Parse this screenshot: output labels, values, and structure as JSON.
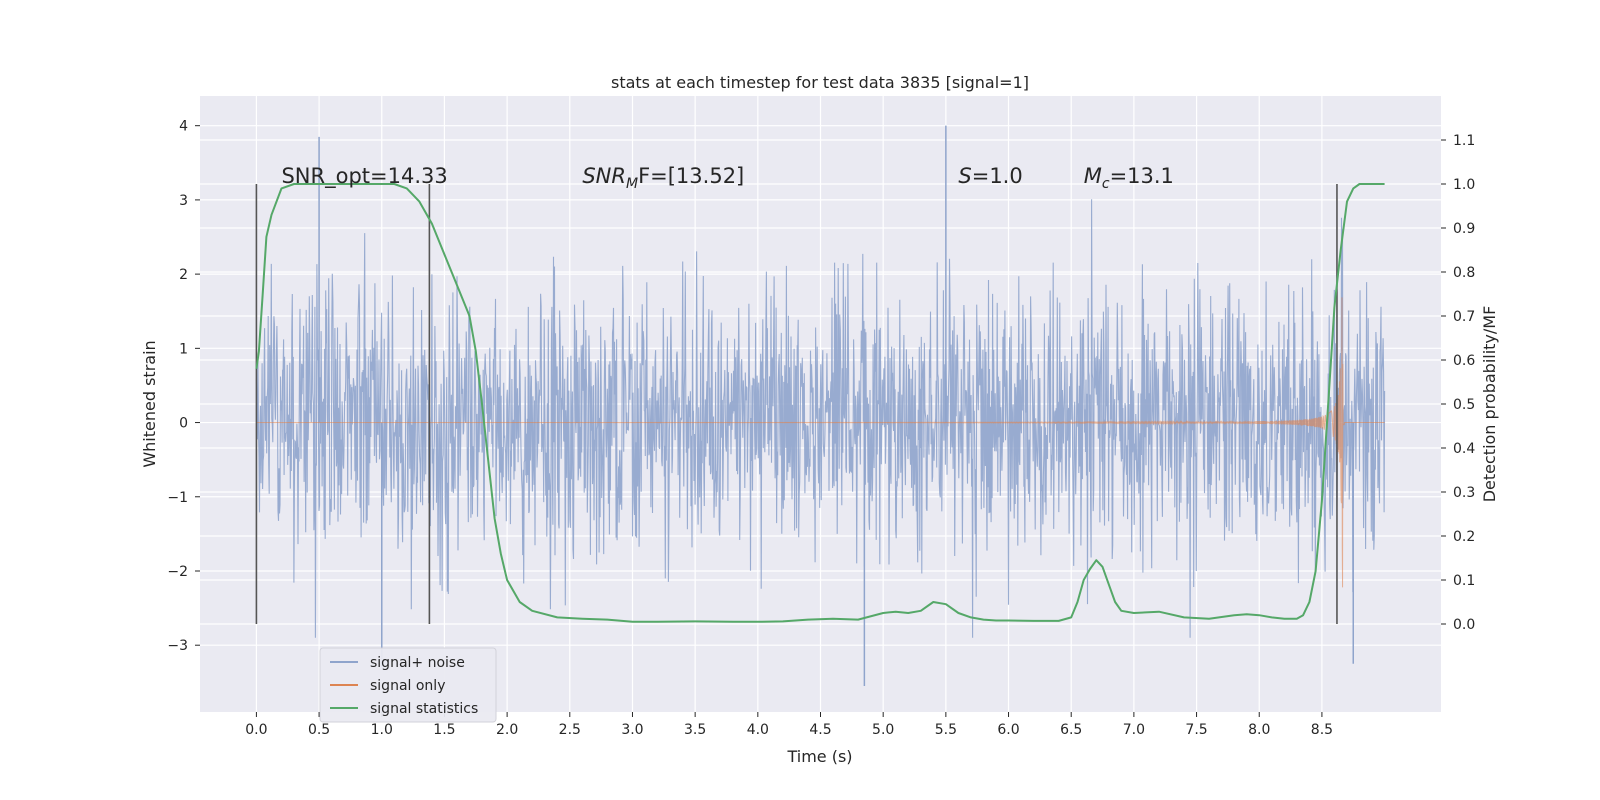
{
  "chart_data": {
    "type": "line",
    "title": "stats at each timestep for test data 3835 [signal=1]",
    "xlabel": "Time (s)",
    "ylabel": "Whitened strain",
    "y2label": "Detection probability/MF",
    "xlim": [
      -0.45,
      9.45
    ],
    "ylim": [
      -3.9,
      4.4
    ],
    "y2lim": [
      -0.2,
      1.2
    ],
    "xticks": [
      0.0,
      0.5,
      1.0,
      1.5,
      2.0,
      2.5,
      3.0,
      3.5,
      4.0,
      4.5,
      5.0,
      5.5,
      6.0,
      6.5,
      7.0,
      7.5,
      8.0,
      8.5
    ],
    "xtick_labels": [
      "0.0",
      "0.5",
      "1.0",
      "1.5",
      "2.0",
      "2.5",
      "3.0",
      "3.5",
      "4.0",
      "4.5",
      "5.0",
      "5.5",
      "6.0",
      "6.5",
      "7.0",
      "7.5",
      "8.0",
      "8.5"
    ],
    "yticks": [
      -3,
      -2,
      -1,
      0,
      1,
      2,
      3,
      4
    ],
    "ytick_labels": [
      "−3",
      "−2",
      "−1",
      "0",
      "1",
      "2",
      "3",
      "4"
    ],
    "y2ticks": [
      0.0,
      0.1,
      0.2,
      0.3,
      0.4,
      0.5,
      0.6,
      0.7,
      0.8,
      0.9,
      1.0,
      1.1
    ],
    "y2tick_labels": [
      "0.0",
      "0.1",
      "0.2",
      "0.3",
      "0.4",
      "0.5",
      "0.6",
      "0.7",
      "0.8",
      "0.9",
      "1.0",
      "1.1"
    ],
    "grid": true,
    "legend_position": "lower-left",
    "series": [
      {
        "name": "signal+ noise",
        "color": "#8fa4cc",
        "description": "whitened strain noise, roughly within ±2 with peaks near 4 at t=0.5 and t=5.5",
        "x_range": [
          0.0,
          9.0
        ],
        "envelope": [
          -2.0,
          2.0
        ],
        "peaks": [
          {
            "x": 0.5,
            "y": 3.85
          },
          {
            "x": 5.5,
            "y": 4.0
          },
          {
            "x": 4.85,
            "y": -3.55
          },
          {
            "x": 1.0,
            "y": -3.3
          },
          {
            "x": 8.75,
            "y": -3.25
          }
        ]
      },
      {
        "name": "signal only",
        "color": "#dd8452",
        "description": "chirp signal growing in amplitude until merger near t=8.65",
        "x_range": [
          0.0,
          9.0
        ],
        "merger_time": 8.65,
        "peak_amplitude": 2.3
      },
      {
        "name": "signal statistics",
        "color": "#55a868",
        "axis": "right",
        "x": [
          0.0,
          0.02,
          0.05,
          0.08,
          0.12,
          0.2,
          0.3,
          0.5,
          0.8,
          1.0,
          1.1,
          1.2,
          1.3,
          1.4,
          1.5,
          1.6,
          1.7,
          1.75,
          1.8,
          1.85,
          1.9,
          1.95,
          2.0,
          2.1,
          2.2,
          2.4,
          2.6,
          2.8,
          3.0,
          3.2,
          3.5,
          3.8,
          4.0,
          4.2,
          4.4,
          4.6,
          4.8,
          5.0,
          5.1,
          5.2,
          5.3,
          5.4,
          5.5,
          5.6,
          5.7,
          5.8,
          5.9,
          6.0,
          6.2,
          6.4,
          6.5,
          6.55,
          6.6,
          6.65,
          6.7,
          6.75,
          6.8,
          6.85,
          6.9,
          7.0,
          7.2,
          7.4,
          7.6,
          7.8,
          7.9,
          8.0,
          8.1,
          8.2,
          8.3,
          8.35,
          8.4,
          8.45,
          8.5,
          8.55,
          8.6,
          8.65,
          8.7,
          8.75,
          8.8,
          8.9,
          9.0
        ],
        "y": [
          0.58,
          0.62,
          0.75,
          0.88,
          0.93,
          0.99,
          1.0,
          1.0,
          1.0,
          1.0,
          1.0,
          0.99,
          0.96,
          0.91,
          0.84,
          0.77,
          0.7,
          0.62,
          0.5,
          0.37,
          0.24,
          0.16,
          0.1,
          0.05,
          0.03,
          0.015,
          0.012,
          0.01,
          0.005,
          0.005,
          0.006,
          0.005,
          0.005,
          0.006,
          0.01,
          0.012,
          0.01,
          0.025,
          0.028,
          0.025,
          0.03,
          0.05,
          0.045,
          0.025,
          0.015,
          0.01,
          0.008,
          0.008,
          0.007,
          0.007,
          0.015,
          0.05,
          0.1,
          0.125,
          0.145,
          0.13,
          0.09,
          0.05,
          0.03,
          0.025,
          0.028,
          0.015,
          0.012,
          0.02,
          0.022,
          0.02,
          0.015,
          0.012,
          0.012,
          0.02,
          0.05,
          0.12,
          0.28,
          0.5,
          0.72,
          0.85,
          0.96,
          0.99,
          1.0,
          1.0,
          1.0
        ]
      }
    ],
    "vertical_lines": [
      {
        "x": 0.0,
        "y2_range": [
          0.0,
          1.0
        ]
      },
      {
        "x": 1.38,
        "y2_range": [
          0.0,
          1.0
        ]
      },
      {
        "x": 8.62,
        "y2_range": [
          0.0,
          1.0
        ]
      }
    ],
    "annotations": [
      {
        "label": "SNR_opt=14.33",
        "x": 0.2,
        "y2": 1.0
      },
      {
        "label_main": "SNR",
        "label_sub": "M",
        "label_rest": "F=[13.52]",
        "x": 2.6,
        "y2": 1.0
      },
      {
        "label_main": "S",
        "label_rest": "=1.0",
        "x": 5.6,
        "y2": 1.0
      },
      {
        "label_main": "M",
        "label_sub": "c",
        "label_rest": "=13.1",
        "x": 6.6,
        "y2": 1.0
      }
    ],
    "legend": [
      {
        "label": "signal+ noise",
        "color": "#8fa4cc"
      },
      {
        "label": "signal only",
        "color": "#dd8452"
      },
      {
        "label": "signal statistics",
        "color": "#55a868"
      }
    ]
  }
}
